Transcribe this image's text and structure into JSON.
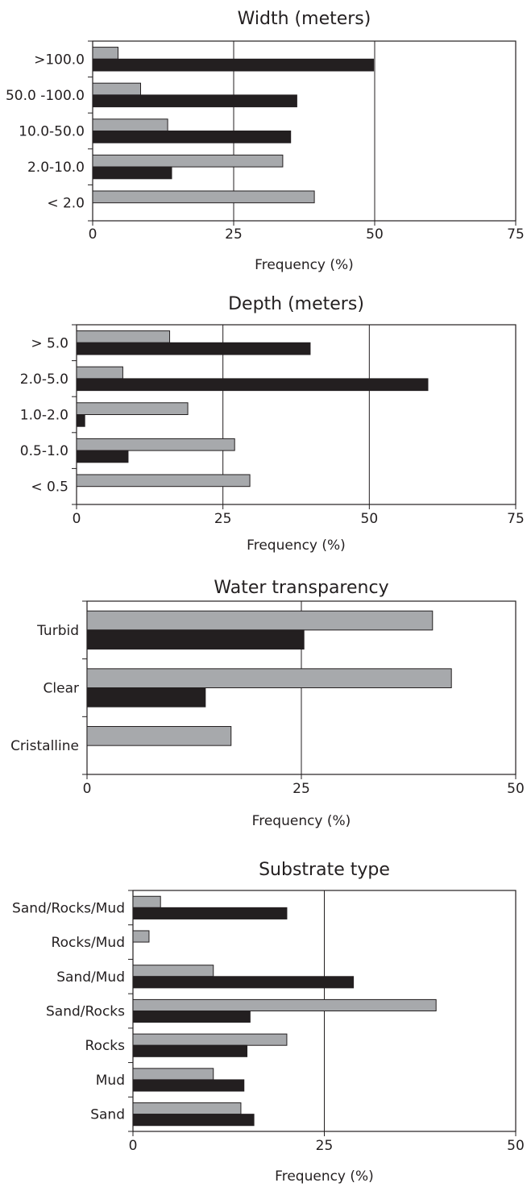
{
  "colors": {
    "series_gray": "#a7a9ac",
    "series_black": "#231f20",
    "frame": "#231f20",
    "grid": "#231f20"
  },
  "chart_data": [
    {
      "type": "bar",
      "title": "Width (meters)",
      "xlabel": "Frequency (%)",
      "ylabel": "",
      "xlim": [
        0,
        75
      ],
      "ticks": [
        "0",
        "25",
        "50",
        "75"
      ],
      "categories": [
        ">100.0",
        "50.0 -100.0",
        "10.0-50.0",
        "2.0-10.0",
        "< 2.0"
      ],
      "series": [
        {
          "values": [
            4.5,
            8.5,
            13.3,
            33.7,
            39.3
          ]
        },
        {
          "values": [
            49.8,
            36.2,
            35.1,
            14.0,
            0
          ]
        }
      ]
    },
    {
      "type": "bar",
      "title": "Depth (meters)",
      "xlabel": "Frequency (%)",
      "ylabel": "",
      "xlim": [
        0,
        75
      ],
      "ticks": [
        "0",
        "25",
        "50",
        "75"
      ],
      "categories": [
        "> 5.0",
        "2.0-5.0",
        "1.0-2.0",
        "0.5-1.0",
        "< 0.5"
      ],
      "series": [
        {
          "values": [
            15.9,
            7.9,
            19.0,
            27.0,
            29.6
          ]
        },
        {
          "values": [
            39.9,
            60.0,
            1.4,
            8.8,
            0
          ]
        }
      ]
    },
    {
      "type": "bar",
      "title": "Water transparency",
      "xlabel": "Frequency (%)",
      "ylabel": "",
      "xlim": [
        0,
        50
      ],
      "ticks": [
        "0",
        "25",
        "50"
      ],
      "categories": [
        "Turbid",
        "Clear",
        "Cristalline"
      ],
      "series": [
        {
          "values": [
            40.3,
            42.5,
            16.8
          ]
        },
        {
          "values": [
            25.3,
            13.8,
            0
          ]
        }
      ]
    },
    {
      "type": "bar",
      "title": "Substrate type",
      "xlabel": "Frequency (%)",
      "ylabel": "",
      "xlim": [
        0,
        50
      ],
      "ticks": [
        "0",
        "25",
        "50"
      ],
      "categories": [
        "Sand/Rocks/Mud",
        "Rocks/Mud",
        "Sand/Mud",
        "Sand/Rocks",
        "Rocks",
        "Mud",
        "Sand"
      ],
      "series": [
        {
          "values": [
            3.6,
            2.1,
            10.5,
            39.6,
            20.1,
            10.5,
            14.1
          ]
        },
        {
          "values": [
            20.1,
            0,
            28.8,
            15.3,
            14.9,
            14.5,
            15.8
          ]
        }
      ]
    }
  ]
}
